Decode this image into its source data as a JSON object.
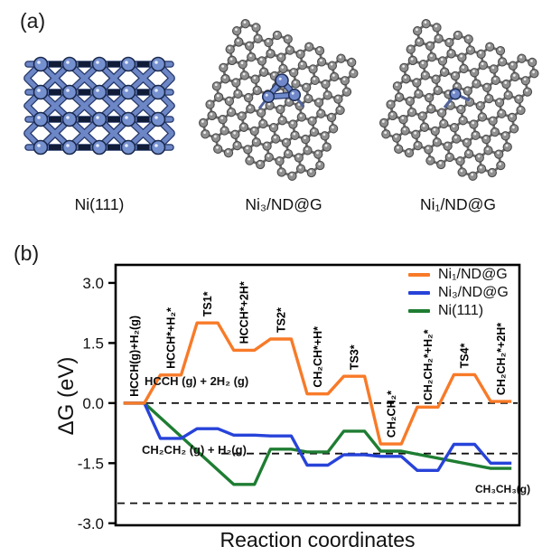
{
  "figure": {
    "panel_a": {
      "label": "(a)",
      "structures": [
        {
          "name": "Ni(111)"
        },
        {
          "name": "Ni₃/ND@G"
        },
        {
          "name": "Ni₁/ND@G"
        }
      ]
    },
    "panel_b": {
      "label": "(b)"
    }
  },
  "palette": {
    "nickel_atom": "#7088C9",
    "nickel_bond_dark": "#24386B",
    "carbon_atom": "#8F8F8F",
    "carbon_bond": "#6B6B6B",
    "axis": "#000000"
  },
  "chart_data": {
    "type": "line",
    "subtype": "reaction_free_energy_profile",
    "title": "",
    "xlabel": "Reaction coordinates",
    "ylabel": "ΔG (eV)",
    "ylim": [
      -3.0,
      3.0
    ],
    "yticks": [
      3.0,
      1.5,
      0.0,
      -1.5,
      -3.0
    ],
    "grid": false,
    "legend_position": "top-right",
    "categories": [
      "HCCH(g)+H₂(g)",
      "HCCH*+H₂*",
      "TS1*",
      "HCCH*+2H*",
      "TS2*",
      "CH₂CH*+H*",
      "TS3*",
      "CH₂CH₂*",
      "CH₂CH₂*+H₂*",
      "TS4*",
      "CH₂CH₂*+2H*"
    ],
    "series": [
      {
        "name": "Ni₁/ND@G",
        "color": "#F87A28",
        "values": [
          0.0,
          0.7,
          2.0,
          1.32,
          1.6,
          0.23,
          0.67,
          -1.02,
          -0.1,
          0.71,
          0.04
        ]
      },
      {
        "name": "Ni₃/ND@G",
        "color": "#2743D9",
        "values": [
          0.0,
          -0.88,
          -0.64,
          -0.8,
          -0.82,
          -1.55,
          -1.29,
          -1.33,
          -1.68,
          -1.03,
          -1.5
        ]
      },
      {
        "name": "Ni(111)",
        "color": "#1E7D32",
        "values": [
          0.0,
          null,
          null,
          -2.03,
          -1.15,
          -1.22,
          -0.7,
          -1.2,
          null,
          null,
          -1.63
        ]
      }
    ],
    "reference_lines": [
      {
        "value": 0.0,
        "label": "HCCH (g) + 2H₂ (g)",
        "style": "dashed"
      },
      {
        "value": -1.26,
        "label": "CH₂CH₂ (g) + H₂(g)",
        "style": "dashed"
      },
      {
        "value": -2.5,
        "label": "CH₃CH₃(g)",
        "style": "dashed"
      }
    ]
  }
}
